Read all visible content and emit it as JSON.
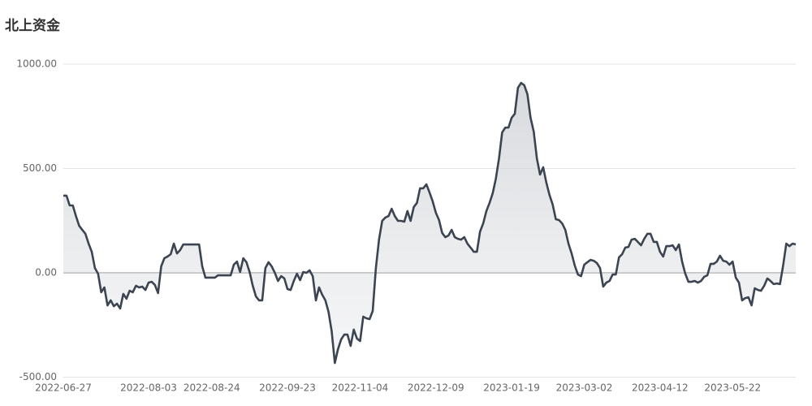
{
  "chart_data": {
    "type": "area",
    "title": "北上资金",
    "categories": [
      "2022-06-27",
      null,
      null,
      null,
      null,
      null,
      null,
      null,
      null,
      null,
      null,
      null,
      null,
      null,
      null,
      null,
      null,
      null,
      null,
      null,
      null,
      null,
      null,
      null,
      null,
      null,
      null,
      "2022-08-03",
      null,
      null,
      null,
      null,
      null,
      null,
      null,
      null,
      null,
      null,
      null,
      null,
      null,
      null,
      null,
      null,
      null,
      null,
      null,
      "2022-08-24",
      null,
      null,
      null,
      null,
      null,
      null,
      null,
      null,
      null,
      null,
      null,
      null,
      null,
      null,
      null,
      null,
      null,
      null,
      null,
      null,
      null,
      null,
      null,
      "2022-09-23",
      null,
      null,
      null,
      null,
      null,
      null,
      null,
      null,
      null,
      null,
      null,
      null,
      null,
      null,
      null,
      null,
      null,
      null,
      null,
      null,
      null,
      null,
      "2022-11-04",
      null,
      null,
      null,
      null,
      null,
      null,
      null,
      null,
      null,
      null,
      null,
      null,
      null,
      null,
      null,
      null,
      null,
      null,
      null,
      null,
      null,
      null,
      null,
      "2022-12-09",
      null,
      null,
      null,
      null,
      null,
      null,
      null,
      null,
      null,
      null,
      null,
      null,
      null,
      null,
      null,
      null,
      null,
      null,
      null,
      null,
      null,
      null,
      null,
      "2023-01-19",
      null,
      null,
      null,
      null,
      null,
      null,
      null,
      null,
      null,
      null,
      null,
      null,
      null,
      null,
      null,
      null,
      null,
      null,
      null,
      null,
      null,
      null,
      "2023-03-02",
      null,
      null,
      null,
      null,
      null,
      null,
      null,
      null,
      null,
      null,
      null,
      null,
      null,
      null,
      null,
      null,
      null,
      null,
      null,
      null,
      null,
      null,
      null,
      "2023-04-12",
      null,
      null,
      null,
      null,
      null,
      null,
      null,
      null,
      null,
      null,
      null,
      null,
      null,
      null,
      null,
      null,
      null,
      null,
      null,
      null,
      null,
      null,
      "2023-05-22",
      null,
      null,
      null,
      null,
      null,
      null,
      null,
      null,
      null,
      null,
      null,
      null,
      null,
      null,
      null,
      null,
      null,
      null,
      null,
      null
    ],
    "values": [
      370,
      370,
      323,
      323,
      272,
      226,
      206,
      187,
      140,
      101,
      23,
      -4,
      -93,
      -70,
      -156,
      -132,
      -160,
      -148,
      -171,
      -101,
      -124,
      -86,
      -93,
      -62,
      -70,
      -66,
      -82,
      -47,
      -43,
      -58,
      -97,
      31,
      70,
      78,
      89,
      140,
      93,
      109,
      136,
      136,
      136,
      136,
      136,
      136,
      31,
      -23,
      -23,
      -23,
      -23,
      -12,
      -12,
      -12,
      -12,
      -12,
      39,
      54,
      4,
      70,
      51,
      4,
      -62,
      -113,
      -132,
      -132,
      23,
      51,
      31,
      0,
      -39,
      -16,
      -27,
      -78,
      -82,
      -39,
      -4,
      -35,
      4,
      0,
      12,
      -16,
      -132,
      -70,
      -105,
      -132,
      -187,
      -280,
      -432,
      -366,
      -319,
      -296,
      -296,
      -350,
      -272,
      -315,
      -327,
      -210,
      -218,
      -222,
      -183,
      23,
      160,
      249,
      265,
      272,
      307,
      272,
      249,
      249,
      245,
      296,
      249,
      315,
      335,
      405,
      405,
      424,
      385,
      342,
      288,
      253,
      191,
      171,
      179,
      206,
      171,
      163,
      159,
      171,
      140,
      121,
      101,
      101,
      198,
      237,
      296,
      335,
      381,
      451,
      548,
      673,
      696,
      696,
      743,
      762,
      887,
      910,
      899,
      856,
      743,
      677,
      548,
      471,
      506,
      432,
      373,
      327,
      257,
      253,
      237,
      206,
      140,
      93,
      35,
      -8,
      -16,
      39,
      51,
      62,
      58,
      47,
      23,
      -66,
      -47,
      -39,
      -8,
      -8,
      74,
      89,
      121,
      124,
      159,
      163,
      148,
      132,
      163,
      187,
      187,
      148,
      148,
      101,
      78,
      128,
      128,
      132,
      109,
      136,
      54,
      -4,
      -43,
      -43,
      -39,
      -47,
      -39,
      -19,
      -12,
      43,
      43,
      54,
      82,
      58,
      54,
      39,
      54,
      -23,
      -47,
      -132,
      -121,
      -117,
      -156,
      -74,
      -82,
      -86,
      -62,
      -27,
      -39,
      -54,
      -51,
      -54,
      35,
      140,
      128,
      140,
      136
    ],
    "color": "#3b4450",
    "ylim": [
      -500,
      1000
    ],
    "yticks": [
      {
        "value": -500,
        "label": "-500.00"
      },
      {
        "value": 0,
        "label": "0.00"
      },
      {
        "value": 500,
        "label": "500.00"
      },
      {
        "value": 1000,
        "label": "1000.00"
      }
    ],
    "grid": true
  }
}
